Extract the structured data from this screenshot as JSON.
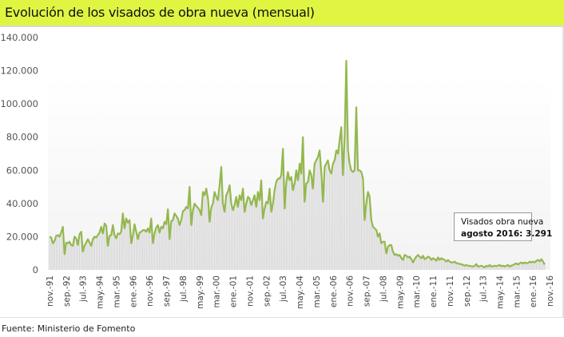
{
  "title": "Evolución de los visados de obra nueva (mensual)",
  "source": "Fuente: Ministerio de Fomento",
  "tooltip": {
    "line1": "Visados obra nueva",
    "line2": "agosto 2016: 3.291"
  },
  "colors": {
    "title_bar": "#dff542",
    "line": "#94b84e",
    "bars": "#d4d4d4"
  },
  "chart_data": {
    "type": "line",
    "title": "Evolución de los visados de obra nueva (mensual)",
    "xlabel": "",
    "ylabel": "",
    "start_month": "nov.-91",
    "end_month": "ago.-16",
    "ylim": [
      0,
      140000
    ],
    "yticks": [
      "0",
      "20.000",
      "40.000",
      "60.000",
      "80.000",
      "100.000",
      "120.000",
      "140.000"
    ],
    "ytick_values": [
      0,
      20000,
      40000,
      60000,
      80000,
      100000,
      120000,
      140000
    ],
    "xticks": [
      "nov.-91",
      "sep.-92",
      "jul.-93",
      "may.-94",
      "mar.-95",
      "ene.-96",
      "nov.-96",
      "sep.-97",
      "jul.-98",
      "may.-99",
      "mar.-00",
      "ene.-01",
      "nov.-01",
      "sep.-02",
      "jul.-03",
      "may.-04",
      "mar.-05",
      "ene.-06",
      "nov.-06",
      "sep.-07",
      "jul.-08",
      "may.-09",
      "mar.-10",
      "ene.-11",
      "nov.-11",
      "sep.-12",
      "jul.-13",
      "may.-14",
      "mar.-15",
      "ene.-16",
      "nov.-16"
    ],
    "xtick_interval_months": 10,
    "grid": false,
    "values": [
      20000,
      19500,
      16000,
      17500,
      20500,
      21000,
      20000,
      22500,
      26000,
      9500,
      16500,
      16000,
      17000,
      15000,
      14500,
      20000,
      19000,
      15000,
      21500,
      23000,
      11000,
      14500,
      16500,
      18500,
      16500,
      14500,
      18500,
      20000,
      19500,
      21000,
      22500,
      26000,
      22000,
      28000,
      26500,
      14500,
      20500,
      21000,
      27000,
      21000,
      19000,
      22000,
      21500,
      23000,
      34000,
      25000,
      31000,
      28500,
      30000,
      16000,
      21000,
      27500,
      23000,
      18500,
      22500,
      23000,
      24000,
      24000,
      23000,
      25000,
      22500,
      31000,
      16000,
      22000,
      25500,
      27000,
      22500,
      26000,
      25000,
      29000,
      27500,
      36500,
      18500,
      29500,
      30000,
      34000,
      32500,
      31000,
      27000,
      30000,
      35500,
      36000,
      38000,
      37000,
      50000,
      27000,
      36000,
      40000,
      38500,
      37500,
      36000,
      33000,
      47000,
      45000,
      49000,
      43000,
      29000,
      37500,
      40000,
      47000,
      44000,
      42000,
      51000,
      62000,
      40000,
      35000,
      45000,
      47000,
      51000,
      40000,
      36000,
      39000,
      44000,
      38000,
      45000,
      42000,
      49000,
      35000,
      40000,
      44000,
      43000,
      39000,
      42000,
      45000,
      38000,
      47000,
      42000,
      54000,
      31000,
      37000,
      41000,
      40000,
      49000,
      35000,
      40000,
      48000,
      53000,
      55000,
      55000,
      57000,
      73000,
      37000,
      53000,
      59000,
      54000,
      56000,
      48000,
      52000,
      60000,
      54000,
      64000,
      58000,
      80000,
      41000,
      52000,
      53000,
      60000,
      57000,
      49000,
      64000,
      66000,
      68000,
      72000,
      59000,
      41000,
      62000,
      64000,
      66000,
      60000,
      58000,
      64000,
      66000,
      72000,
      70000,
      78000,
      86000,
      57000,
      80000,
      126000,
      72000,
      64000,
      60000,
      59000,
      60000,
      98000,
      60000,
      60000,
      59000,
      55000,
      30000,
      40000,
      47000,
      44000,
      30000,
      26000,
      25000,
      24000,
      20000,
      22000,
      16000,
      17000,
      17000,
      10000,
      14000,
      15000,
      15000,
      11000,
      9000,
      9500,
      8500,
      9000,
      7000,
      6000,
      9000,
      8500,
      7500,
      8000,
      6500,
      4500,
      6500,
      8000,
      9000,
      8000,
      7000,
      8500,
      6500,
      7000,
      8000,
      7500,
      6000,
      7000,
      6500,
      5500,
      7500,
      6000,
      7000,
      6500,
      6000,
      5000,
      6000,
      5000,
      4500,
      4500,
      5000,
      4000,
      4000,
      3500,
      3500,
      3000,
      2500,
      3000,
      2500,
      2500,
      2200,
      2000,
      2500,
      3500,
      2000,
      2200,
      2500,
      2000,
      1500,
      2500,
      2000,
      3000,
      2000,
      2200,
      2500,
      2300,
      2500,
      3000,
      2200,
      2500,
      2000,
      2500,
      3000,
      2000,
      2500,
      3000,
      3500,
      4000,
      3200,
      4000,
      4500,
      3800,
      4500,
      4000,
      4200,
      5000,
      4500,
      5000,
      4500,
      5500,
      6000,
      5200,
      6500,
      5000,
      3291
    ],
    "annotation": "Visados obra nueva agosto 2016: 3.291"
  }
}
